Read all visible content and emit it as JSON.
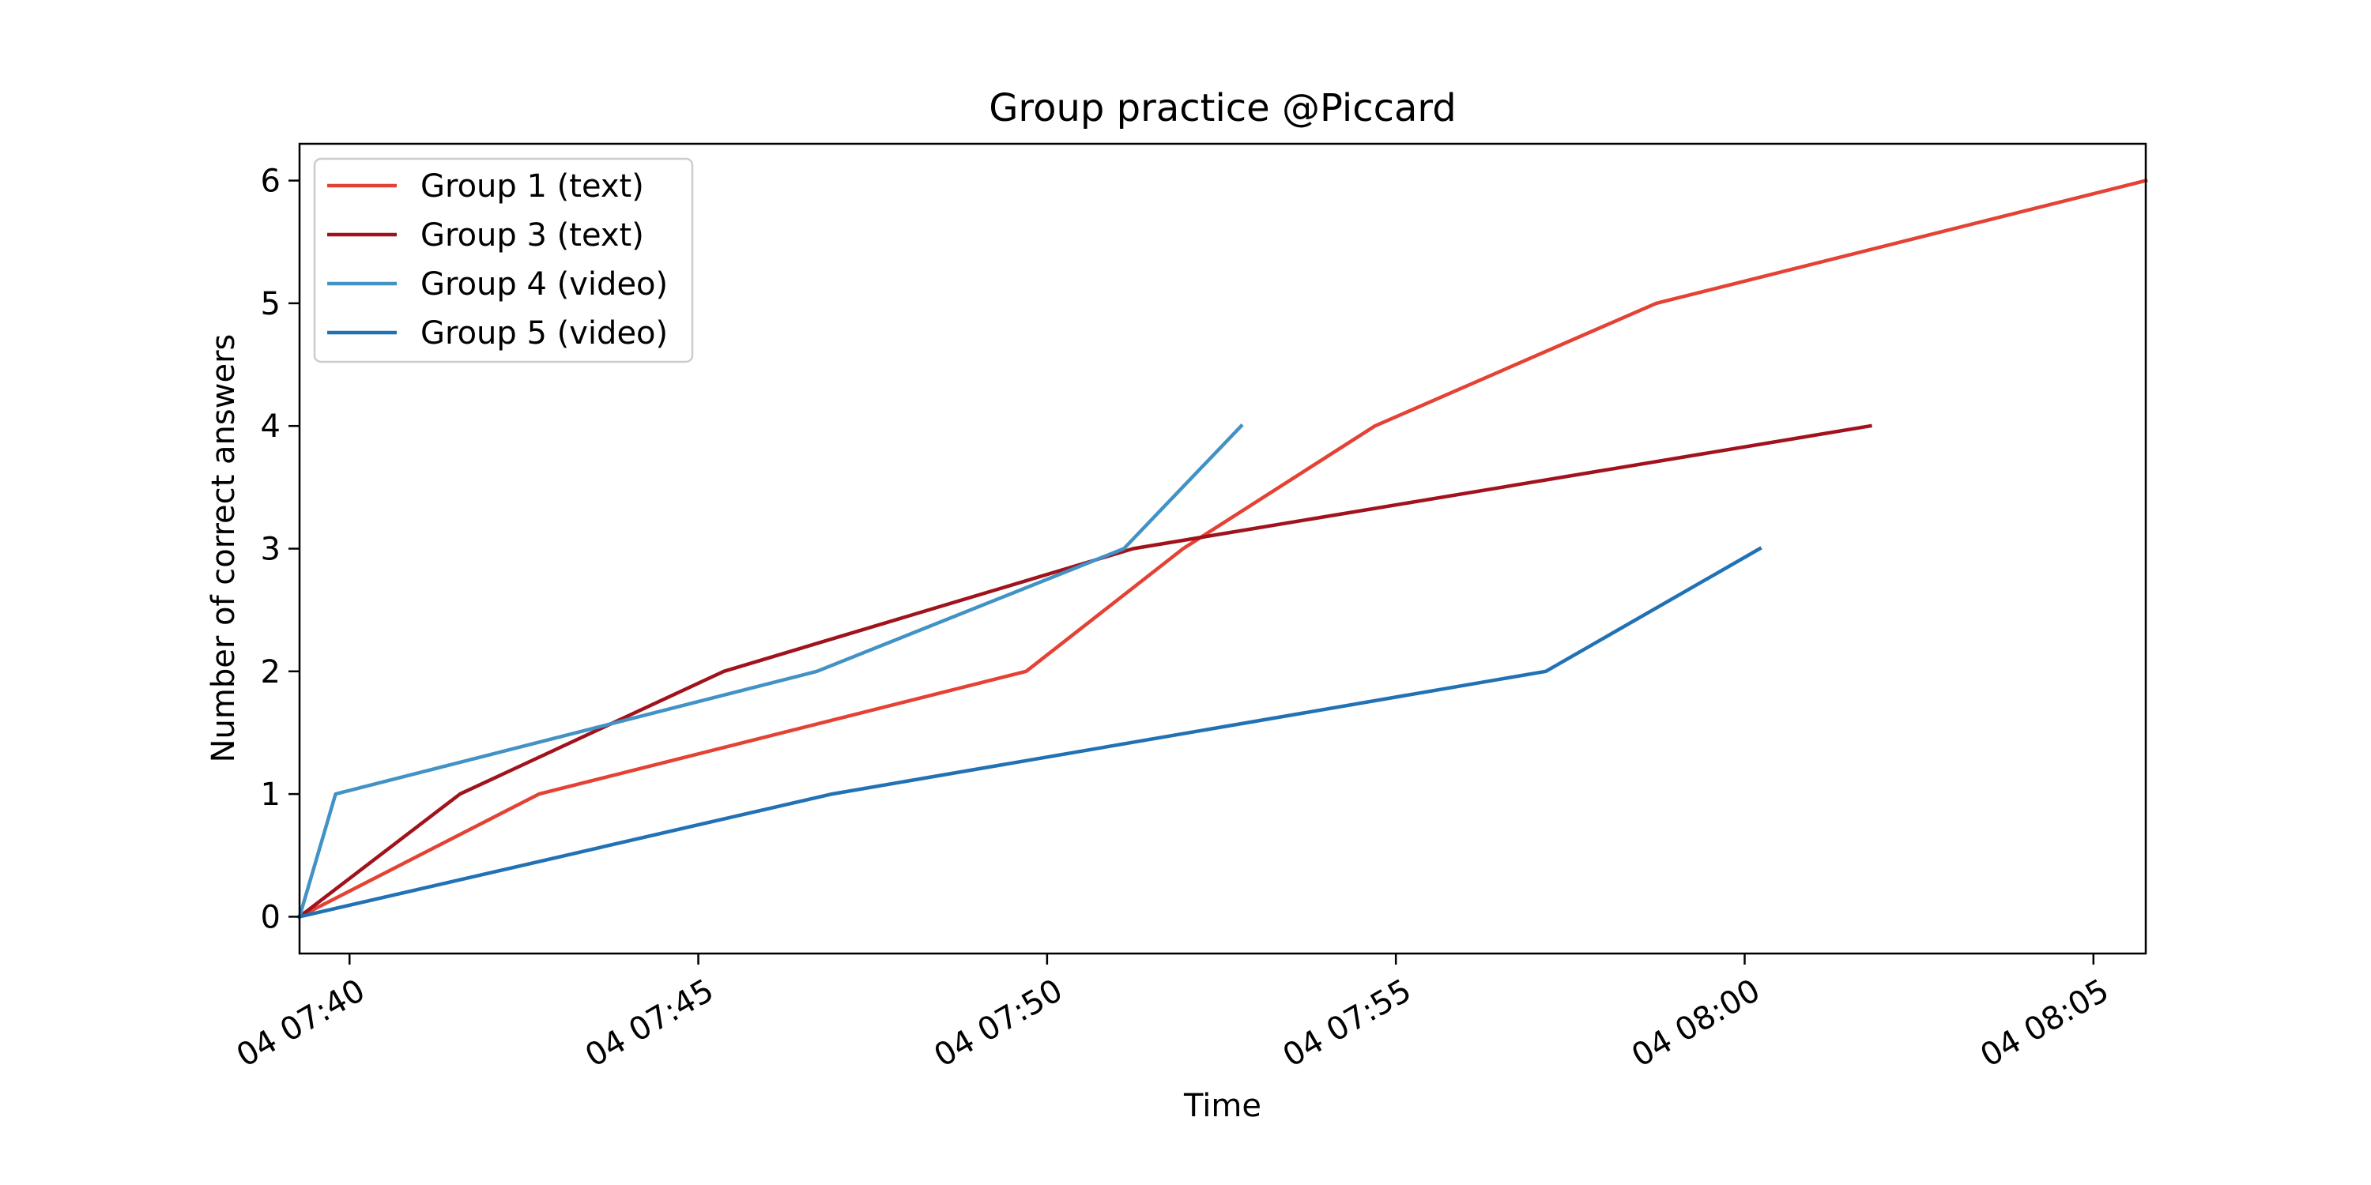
{
  "chart_data": {
    "type": "line",
    "title": "Group practice @Piccard",
    "xlabel": "Time",
    "ylabel": "Number of correct answers",
    "x_unit": "time (HH:MM, day 04)",
    "xlim": [
      "07:39:17",
      "08:05:45"
    ],
    "ylim": [
      -0.3,
      6.3
    ],
    "x_ticks": [
      {
        "t": "07:40",
        "label": "04 07:40"
      },
      {
        "t": "07:45",
        "label": "04 07:45"
      },
      {
        "t": "07:50",
        "label": "04 07:50"
      },
      {
        "t": "07:55",
        "label": "04 07:55"
      },
      {
        "t": "08:00",
        "label": "04 08:00"
      },
      {
        "t": "08:05",
        "label": "04 08:05"
      }
    ],
    "y_ticks": [
      "0",
      "1",
      "2",
      "3",
      "4",
      "5",
      "6"
    ],
    "grid": false,
    "legend_position": "top-left",
    "series": [
      {
        "name": "Group 1 (text)",
        "color": "#e34234",
        "points": [
          {
            "x": "07:39:17",
            "y": 0
          },
          {
            "x": "07:42:43",
            "y": 1
          },
          {
            "x": "07:49:42",
            "y": 2
          },
          {
            "x": "07:51:57",
            "y": 3
          },
          {
            "x": "07:54:42",
            "y": 4
          },
          {
            "x": "07:58:44",
            "y": 5
          },
          {
            "x": "08:05:45",
            "y": 6
          }
        ]
      },
      {
        "name": "Group 3 (text)",
        "color": "#a0131d",
        "points": [
          {
            "x": "07:39:17",
            "y": 0
          },
          {
            "x": "07:41:35",
            "y": 1
          },
          {
            "x": "07:45:22",
            "y": 2
          },
          {
            "x": "07:51:14",
            "y": 3
          },
          {
            "x": "08:01:48",
            "y": 4
          }
        ]
      },
      {
        "name": "Group 4 (video)",
        "color": "#4292c6",
        "points": [
          {
            "x": "07:39:17",
            "y": 0
          },
          {
            "x": "07:39:48",
            "y": 1
          },
          {
            "x": "07:46:42",
            "y": 2
          },
          {
            "x": "07:51:06",
            "y": 3
          },
          {
            "x": "07:52:47",
            "y": 4
          }
        ]
      },
      {
        "name": "Group 5 (video)",
        "color": "#2171b5",
        "points": [
          {
            "x": "07:39:17",
            "y": 0
          },
          {
            "x": "07:46:55",
            "y": 1
          },
          {
            "x": "07:57:09",
            "y": 2
          },
          {
            "x": "08:00:13",
            "y": 3
          }
        ]
      }
    ]
  }
}
